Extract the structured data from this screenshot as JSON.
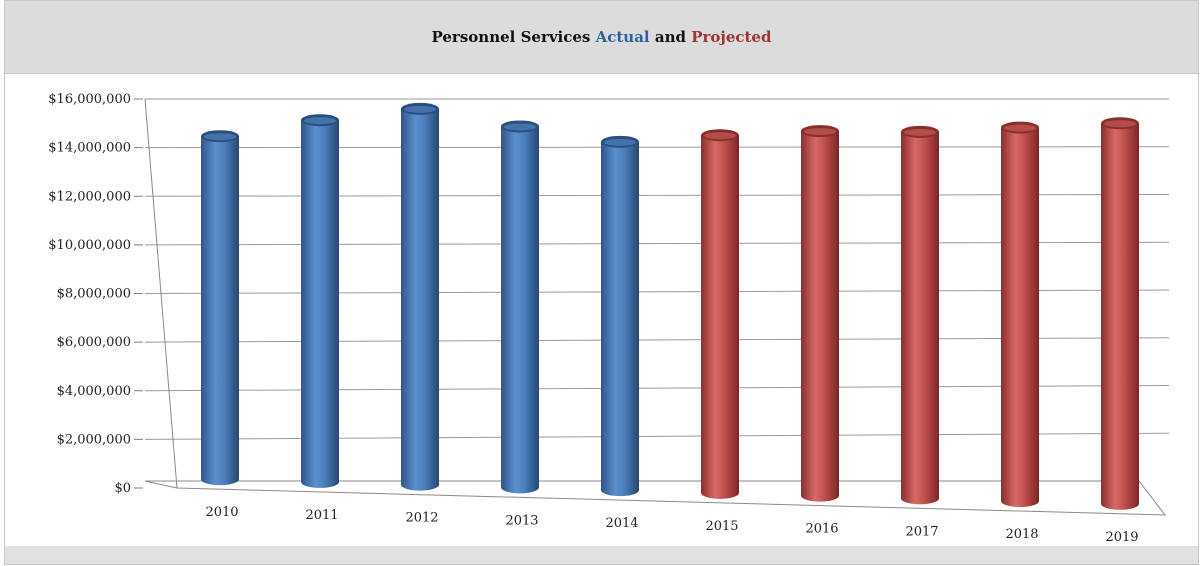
{
  "chart_data": {
    "type": "bar",
    "title_parts": [
      {
        "text": "Personnel Services ",
        "color": "#111111"
      },
      {
        "text": "Actual",
        "color": "#2f5f9f"
      },
      {
        "text": " and ",
        "color": "#111111"
      },
      {
        "text": "Projected",
        "color": "#9e3434"
      }
    ],
    "categories": [
      "2010",
      "2011",
      "2012",
      "2013",
      "2014",
      "2015",
      "2016",
      "2017",
      "2018",
      "2019"
    ],
    "values": [
      14200000,
      14900000,
      15400000,
      14700000,
      14100000,
      14400000,
      14600000,
      14600000,
      14800000,
      15000000
    ],
    "series_groups": [
      "actual",
      "actual",
      "actual",
      "actual",
      "actual",
      "projected",
      "projected",
      "projected",
      "projected",
      "projected"
    ],
    "ylim": [
      0,
      16000000
    ],
    "yticks": [
      0,
      2000000,
      4000000,
      6000000,
      8000000,
      10000000,
      12000000,
      14000000,
      16000000
    ],
    "ytick_labels": [
      "$0",
      "$2,000,000",
      "$4,000,000",
      "$6,000,000",
      "$8,000,000",
      "$10,000,000",
      "$12,000,000",
      "$14,000,000",
      "$16,000,000"
    ],
    "grid": true,
    "colors": {
      "actual": "#4a7ebb",
      "projected": "#c0504d"
    }
  }
}
